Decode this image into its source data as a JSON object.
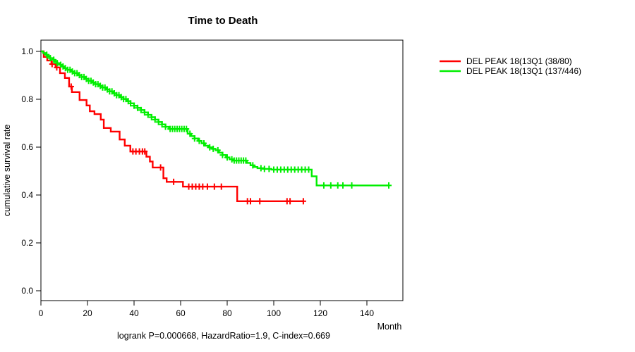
{
  "title": "Time to Death",
  "footer_note": "logrank P=0.000668, HazardRatio=1.9, C-index=0.669",
  "axes": {
    "x_label": "Month",
    "y_label": "cumulative survival rate",
    "x_ticks": [
      0,
      20,
      40,
      60,
      80,
      100,
      120,
      140
    ],
    "y_ticks": [
      "0.0",
      "0.2",
      "0.4",
      "0.6",
      "0.8",
      "1.0"
    ]
  },
  "legend": {
    "items": [
      {
        "label": "DEL PEAK 18(13Q1 (38/80)",
        "color": "#ff0000"
      },
      {
        "label": "DEL PEAK 18(13Q1 (137/446)",
        "color": "#00ee00"
      }
    ]
  },
  "colors": {
    "red_series": "#ff0000",
    "green_series": "#00ee00",
    "axis": "#000000",
    "background": "#ffffff"
  },
  "chart_data": {
    "type": "line",
    "subtype": "kaplan-meier-step",
    "title": "Time to Death",
    "xlabel": "Month",
    "ylabel": "cumulative survival rate",
    "xlim": [
      0,
      155
    ],
    "ylim": [
      0.0,
      1.04
    ],
    "x_ticks": [
      0,
      20,
      40,
      60,
      80,
      100,
      120,
      140
    ],
    "y_ticks": [
      0.0,
      0.2,
      0.4,
      0.6,
      0.8,
      1.0
    ],
    "grid": false,
    "legend_position": "outside-right",
    "annotation": "logrank P=0.000668, HazardRatio=1.9, C-index=0.669",
    "series": [
      {
        "name": "DEL PEAK 18(13Q1 (38/80)",
        "color": "#ff0000",
        "events_over_n": "38/80",
        "end_time": 112.7,
        "steps": [
          [
            0,
            1.0
          ],
          [
            1.2,
            0.977
          ],
          [
            2.7,
            0.962
          ],
          [
            4.5,
            0.947
          ],
          [
            6.3,
            0.933
          ],
          [
            8.2,
            0.909
          ],
          [
            10.3,
            0.889
          ],
          [
            12.1,
            0.853
          ],
          [
            13.3,
            0.83
          ],
          [
            16.6,
            0.797
          ],
          [
            19.6,
            0.774
          ],
          [
            21,
            0.75
          ],
          [
            23,
            0.738
          ],
          [
            25.7,
            0.715
          ],
          [
            27,
            0.68
          ],
          [
            30,
            0.665
          ],
          [
            33.8,
            0.632
          ],
          [
            36,
            0.606
          ],
          [
            38.4,
            0.582
          ],
          [
            45.3,
            0.56
          ],
          [
            46.8,
            0.54
          ],
          [
            48,
            0.515
          ],
          [
            52.6,
            0.47
          ],
          [
            54,
            0.455
          ],
          [
            61,
            0.435
          ],
          [
            84.3,
            0.374
          ]
        ],
        "censor_times": [
          4.8,
          6.8,
          13.0,
          39.5,
          40.8,
          42.3,
          43.6,
          44.6,
          51.4,
          57,
          63.5,
          65,
          66.5,
          68,
          69.5,
          71.5,
          74.5,
          77.5,
          88.7,
          90,
          94,
          105.7,
          107,
          112.7
        ]
      },
      {
        "name": "DEL PEAK 18(13Q1 (137/446)",
        "color": "#00ee00",
        "events_over_n": "137/446",
        "end_time": 149.4,
        "steps": [
          [
            0,
            1.0
          ],
          [
            1,
            0.993
          ],
          [
            2,
            0.986
          ],
          [
            3,
            0.979
          ],
          [
            4,
            0.972
          ],
          [
            5,
            0.965
          ],
          [
            6,
            0.958
          ],
          [
            7,
            0.951
          ],
          [
            8,
            0.944
          ],
          [
            9,
            0.937
          ],
          [
            10,
            0.93
          ],
          [
            11.5,
            0.923
          ],
          [
            13,
            0.916
          ],
          [
            14.5,
            0.909
          ],
          [
            16,
            0.901
          ],
          [
            17.5,
            0.893
          ],
          [
            19,
            0.885
          ],
          [
            20.5,
            0.877
          ],
          [
            22,
            0.87
          ],
          [
            23.5,
            0.863
          ],
          [
            25,
            0.856
          ],
          [
            26.5,
            0.849
          ],
          [
            28,
            0.841
          ],
          [
            29.5,
            0.833
          ],
          [
            31,
            0.825
          ],
          [
            32.5,
            0.817
          ],
          [
            34,
            0.809
          ],
          [
            35.5,
            0.801
          ],
          [
            37,
            0.792
          ],
          [
            38.5,
            0.783
          ],
          [
            40,
            0.773
          ],
          [
            41.5,
            0.764
          ],
          [
            43,
            0.755
          ],
          [
            44.5,
            0.745
          ],
          [
            46,
            0.735
          ],
          [
            47.5,
            0.725
          ],
          [
            49,
            0.715
          ],
          [
            50.5,
            0.705
          ],
          [
            52,
            0.695
          ],
          [
            53.5,
            0.685
          ],
          [
            55,
            0.676
          ],
          [
            63,
            0.656
          ],
          [
            64.5,
            0.646
          ],
          [
            66,
            0.636
          ],
          [
            67.5,
            0.626
          ],
          [
            69,
            0.616
          ],
          [
            70.5,
            0.606
          ],
          [
            72,
            0.599
          ],
          [
            73.5,
            0.593
          ],
          [
            75,
            0.587
          ],
          [
            76.5,
            0.577
          ],
          [
            78,
            0.567
          ],
          [
            79.5,
            0.557
          ],
          [
            81,
            0.549
          ],
          [
            82.5,
            0.544
          ],
          [
            88.5,
            0.534
          ],
          [
            90,
            0.524
          ],
          [
            91.5,
            0.517
          ],
          [
            93,
            0.512
          ],
          [
            96,
            0.509
          ],
          [
            99,
            0.506
          ],
          [
            116.3,
            0.478
          ],
          [
            118.4,
            0.44
          ]
        ],
        "censor_times": [
          2.5,
          4,
          5.5,
          7,
          8.5,
          9.5,
          10.5,
          11.5,
          12.5,
          13.5,
          14.5,
          15.5,
          16.5,
          17.5,
          18.5,
          19.5,
          20.5,
          21.5,
          22.5,
          23.5,
          24.5,
          25.5,
          26.5,
          27.5,
          28.5,
          29.5,
          30.5,
          31.5,
          32.5,
          33.5,
          34.5,
          35.5,
          36.5,
          37.5,
          38.5,
          40,
          41.5,
          43,
          44.5,
          46,
          47.5,
          49,
          50.5,
          52,
          53.5,
          55.5,
          56.5,
          57.5,
          58.5,
          59.5,
          60.5,
          61.5,
          62.5,
          64,
          66,
          68,
          70,
          72.5,
          74,
          76,
          78,
          80,
          82,
          83,
          84,
          85,
          86,
          87,
          88,
          91,
          94.5,
          96,
          98,
          100,
          101.5,
          103,
          104.5,
          106,
          107.5,
          109,
          110.5,
          112,
          113.5,
          115,
          121.5,
          124.5,
          127.5,
          129.7,
          133.5,
          149.4
        ]
      }
    ]
  }
}
